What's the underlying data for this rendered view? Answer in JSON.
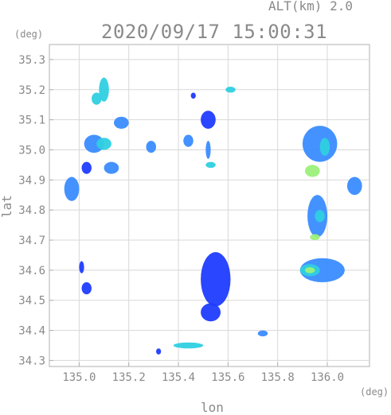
{
  "header": {
    "alt_label": "ALT(km) 2.0",
    "timestamp": "2020/09/17 15:00:31"
  },
  "chart_data": {
    "type": "heatmap",
    "title": "2020/09/17 15:00:31",
    "xlabel": "lon",
    "ylabel": "lat",
    "x_unit": "(deg)",
    "y_unit": "(deg)",
    "xlim": [
      134.88,
      136.17
    ],
    "ylim": [
      34.28,
      35.35
    ],
    "xticks": [
      135.0,
      135.2,
      135.4,
      135.6,
      135.8,
      136.0
    ],
    "xtick_labels": [
      "135.0",
      "135.2",
      "135.4",
      "135.6",
      "135.8",
      "136.0"
    ],
    "yticks": [
      34.3,
      34.4,
      34.5,
      34.6,
      34.7,
      34.8,
      34.9,
      35.0,
      35.1,
      35.2,
      35.3
    ],
    "ytick_labels": [
      "34.3",
      "34.4",
      "34.5",
      "34.6",
      "34.7",
      "34.8",
      "34.9",
      "35.0",
      "35.1",
      "35.2",
      "35.3"
    ],
    "grid": true,
    "colors": {
      "weak": "#1f3cff",
      "moderate": "#3a8cff",
      "strong": "#2fd0e0",
      "peak": "#9bf07a",
      "frame": "#b0b0b0",
      "grid": "#d8d8d8"
    },
    "cells": [
      {
        "lon": 135.1,
        "lat": 35.2,
        "dlon": 0.02,
        "dlat": 0.04,
        "level": "strong"
      },
      {
        "lon": 135.07,
        "lat": 35.17,
        "dlon": 0.02,
        "dlat": 0.02,
        "level": "strong"
      },
      {
        "lon": 135.17,
        "lat": 35.09,
        "dlon": 0.03,
        "dlat": 0.02,
        "level": "moderate"
      },
      {
        "lon": 135.06,
        "lat": 35.02,
        "dlon": 0.04,
        "dlat": 0.03,
        "level": "moderate"
      },
      {
        "lon": 135.1,
        "lat": 35.02,
        "dlon": 0.03,
        "dlat": 0.02,
        "level": "strong"
      },
      {
        "lon": 135.13,
        "lat": 34.94,
        "dlon": 0.03,
        "dlat": 0.02,
        "level": "moderate"
      },
      {
        "lon": 134.97,
        "lat": 34.87,
        "dlon": 0.03,
        "dlat": 0.04,
        "level": "moderate"
      },
      {
        "lon": 135.03,
        "lat": 34.94,
        "dlon": 0.02,
        "dlat": 0.02,
        "level": "weak"
      },
      {
        "lon": 135.01,
        "lat": 34.61,
        "dlon": 0.01,
        "dlat": 0.02,
        "level": "weak"
      },
      {
        "lon": 135.03,
        "lat": 34.54,
        "dlon": 0.02,
        "dlat": 0.02,
        "level": "weak"
      },
      {
        "lon": 135.29,
        "lat": 35.01,
        "dlon": 0.02,
        "dlat": 0.02,
        "level": "moderate"
      },
      {
        "lon": 135.44,
        "lat": 35.03,
        "dlon": 0.02,
        "dlat": 0.02,
        "level": "moderate"
      },
      {
        "lon": 135.52,
        "lat": 35.0,
        "dlon": 0.01,
        "dlat": 0.03,
        "level": "moderate"
      },
      {
        "lon": 135.53,
        "lat": 34.95,
        "dlon": 0.02,
        "dlat": 0.01,
        "level": "strong"
      },
      {
        "lon": 135.52,
        "lat": 35.1,
        "dlon": 0.03,
        "dlat": 0.03,
        "level": "weak"
      },
      {
        "lon": 135.46,
        "lat": 35.18,
        "dlon": 0.01,
        "dlat": 0.01,
        "level": "weak"
      },
      {
        "lon": 135.61,
        "lat": 35.2,
        "dlon": 0.02,
        "dlat": 0.01,
        "level": "strong"
      },
      {
        "lon": 135.55,
        "lat": 34.57,
        "dlon": 0.06,
        "dlat": 0.09,
        "level": "weak"
      },
      {
        "lon": 135.53,
        "lat": 34.46,
        "dlon": 0.04,
        "dlat": 0.03,
        "level": "weak"
      },
      {
        "lon": 135.44,
        "lat": 34.35,
        "dlon": 0.06,
        "dlat": 0.01,
        "level": "strong"
      },
      {
        "lon": 135.32,
        "lat": 34.33,
        "dlon": 0.01,
        "dlat": 0.01,
        "level": "weak"
      },
      {
        "lon": 135.74,
        "lat": 34.39,
        "dlon": 0.02,
        "dlat": 0.01,
        "level": "moderate"
      },
      {
        "lon": 135.97,
        "lat": 35.02,
        "dlon": 0.07,
        "dlat": 0.06,
        "level": "moderate"
      },
      {
        "lon": 135.99,
        "lat": 35.01,
        "dlon": 0.02,
        "dlat": 0.03,
        "level": "strong"
      },
      {
        "lon": 135.94,
        "lat": 34.93,
        "dlon": 0.03,
        "dlat": 0.02,
        "level": "peak"
      },
      {
        "lon": 135.96,
        "lat": 34.78,
        "dlon": 0.04,
        "dlat": 0.07,
        "level": "moderate"
      },
      {
        "lon": 135.97,
        "lat": 34.78,
        "dlon": 0.02,
        "dlat": 0.02,
        "level": "strong"
      },
      {
        "lon": 135.95,
        "lat": 34.71,
        "dlon": 0.02,
        "dlat": 0.01,
        "level": "peak"
      },
      {
        "lon": 135.98,
        "lat": 34.6,
        "dlon": 0.09,
        "dlat": 0.04,
        "level": "moderate"
      },
      {
        "lon": 135.93,
        "lat": 34.6,
        "dlon": 0.04,
        "dlat": 0.02,
        "level": "strong"
      },
      {
        "lon": 135.93,
        "lat": 34.6,
        "dlon": 0.02,
        "dlat": 0.01,
        "level": "peak"
      },
      {
        "lon": 136.11,
        "lat": 34.88,
        "dlon": 0.03,
        "dlat": 0.03,
        "level": "moderate"
      }
    ]
  }
}
